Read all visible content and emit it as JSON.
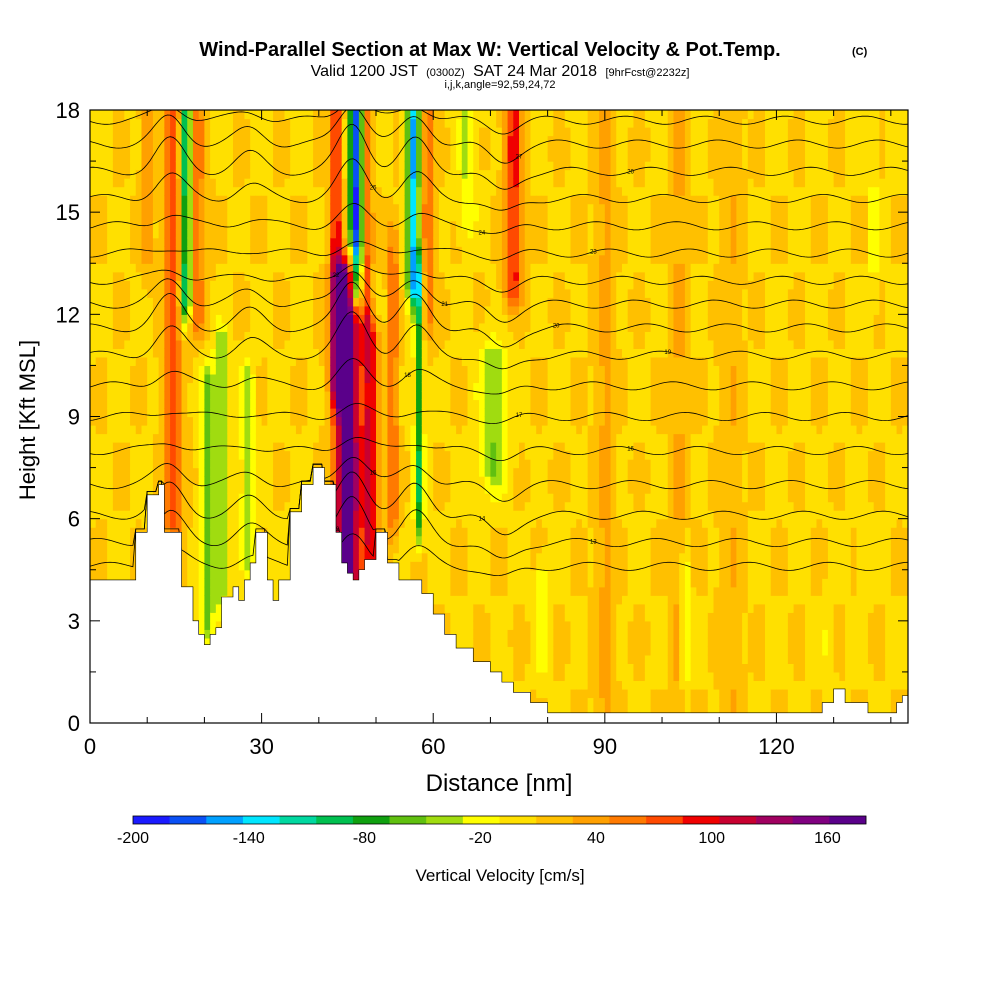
{
  "chart_data": {
    "type": "heatmap",
    "title_main": "Wind-Parallel Section at Max W: Vertical Velocity & Pot.Temp.",
    "title_units": "(C)",
    "subtitle_valid": "Valid 1200 JST",
    "subtitle_z": "(0300Z)",
    "subtitle_date": "SAT 24 Mar 2018",
    "subtitle_fcst": "[9hrFcst@2232z]",
    "subtitle_params": "i,j,k,angle=92,59,24,72",
    "xlabel": "Distance [nm]",
    "ylabel": "Height [Kft MSL]",
    "xlim": [
      0,
      143
    ],
    "ylim": [
      0,
      18
    ],
    "x_ticks": [
      "0",
      "30",
      "60",
      "90",
      "120"
    ],
    "y_ticks": [
      "0",
      "3",
      "6",
      "9",
      "12",
      "15",
      "18"
    ],
    "colorbar_label": "Vertical Velocity [cm/s]",
    "colorbar_ticks": [
      "-200",
      "-140",
      "-80",
      "-20",
      "40",
      "100",
      "160"
    ],
    "colorbar_colors": [
      "#1a1aff",
      "#0a50f5",
      "#00a0ff",
      "#00e6ff",
      "#00d8a0",
      "#00c050",
      "#10a010",
      "#60c010",
      "#a0dc10",
      "#ffff00",
      "#ffe000",
      "#ffc000",
      "#ffa000",
      "#ff7a00",
      "#ff4a00",
      "#f00000",
      "#c80030",
      "#a00060",
      "#800080",
      "#5a008a"
    ],
    "colorbar_min": -200,
    "colorbar_max": 180,
    "terrain": [
      [
        0,
        4.2
      ],
      [
        7,
        4.2
      ],
      [
        8,
        4.2
      ],
      [
        8,
        5.6
      ],
      [
        10,
        5.6
      ],
      [
        10,
        6.7
      ],
      [
        12,
        6.7
      ],
      [
        12,
        7.0
      ],
      [
        13,
        7.0
      ],
      [
        13,
        5.6
      ],
      [
        16,
        5.6
      ],
      [
        16,
        4.0
      ],
      [
        18,
        4.0
      ],
      [
        18,
        3.0
      ],
      [
        19,
        3.0
      ],
      [
        19,
        2.6
      ],
      [
        20,
        2.6
      ],
      [
        20,
        2.3
      ],
      [
        21,
        2.3
      ],
      [
        21,
        2.6
      ],
      [
        22,
        2.6
      ],
      [
        22,
        2.8
      ],
      [
        23,
        2.8
      ],
      [
        23,
        3.7
      ],
      [
        25,
        3.7
      ],
      [
        25,
        4.0
      ],
      [
        26,
        4.0
      ],
      [
        26,
        3.6
      ],
      [
        27,
        3.6
      ],
      [
        27,
        4.2
      ],
      [
        28,
        4.2
      ],
      [
        28,
        4.7
      ],
      [
        29,
        4.7
      ],
      [
        29,
        5.6
      ],
      [
        31,
        5.6
      ],
      [
        31,
        4.2
      ],
      [
        32,
        4.2
      ],
      [
        32,
        3.6
      ],
      [
        33,
        3.6
      ],
      [
        33,
        4.2
      ],
      [
        35,
        4.2
      ],
      [
        35,
        6.2
      ],
      [
        37,
        6.2
      ],
      [
        37,
        7.0
      ],
      [
        39,
        7.0
      ],
      [
        39,
        7.5
      ],
      [
        41,
        7.5
      ],
      [
        41,
        7.0
      ],
      [
        43,
        7.0
      ],
      [
        43,
        5.6
      ],
      [
        44,
        5.6
      ],
      [
        44,
        4.7
      ],
      [
        45,
        4.7
      ],
      [
        45,
        4.4
      ],
      [
        46,
        4.4
      ],
      [
        46,
        4.2
      ],
      [
        47,
        4.2
      ],
      [
        47,
        4.5
      ],
      [
        48,
        4.5
      ],
      [
        48,
        4.8
      ],
      [
        50,
        4.8
      ],
      [
        50,
        5.6
      ],
      [
        52,
        5.6
      ],
      [
        52,
        4.7
      ],
      [
        54,
        4.7
      ],
      [
        54,
        4.2
      ],
      [
        58,
        4.2
      ],
      [
        58,
        3.8
      ],
      [
        60,
        3.8
      ],
      [
        60,
        3.2
      ],
      [
        62,
        3.2
      ],
      [
        62,
        2.6
      ],
      [
        64,
        2.6
      ],
      [
        64,
        2.2
      ],
      [
        67,
        2.2
      ],
      [
        67,
        1.8
      ],
      [
        70,
        1.8
      ],
      [
        70,
        1.5
      ],
      [
        72,
        1.5
      ],
      [
        72,
        1.2
      ],
      [
        74,
        1.2
      ],
      [
        74,
        0.9
      ],
      [
        77,
        0.9
      ],
      [
        77,
        0.6
      ],
      [
        80,
        0.6
      ],
      [
        80,
        0.3
      ],
      [
        128,
        0.3
      ],
      [
        128,
        0.6
      ],
      [
        130,
        0.6
      ],
      [
        130,
        1.0
      ],
      [
        132,
        1.0
      ],
      [
        132,
        0.6
      ],
      [
        136,
        0.6
      ],
      [
        136,
        0.3
      ],
      [
        141,
        0.3
      ],
      [
        141,
        0.6
      ],
      [
        142,
        0.6
      ],
      [
        142,
        0.8
      ],
      [
        143,
        0.8
      ],
      [
        143,
        0
      ]
    ],
    "vv_features": [
      {
        "x": 14.5,
        "z0": 6,
        "z1": 18,
        "wx": 1.5,
        "amp": 70
      },
      {
        "x": 16.8,
        "z0": 12.5,
        "z1": 18,
        "wx": 1.0,
        "amp": -130
      },
      {
        "x": 18.5,
        "z0": 12,
        "z1": 18,
        "wx": 1.6,
        "amp": 55
      },
      {
        "x": 20.5,
        "z0": 3,
        "z1": 10,
        "wx": 1.2,
        "amp": -60
      },
      {
        "x": 23,
        "z0": 4,
        "z1": 11,
        "wx": 1.3,
        "amp": -50
      },
      {
        "x": 27.5,
        "z0": 5,
        "z1": 10,
        "wx": 1.2,
        "amp": -45
      },
      {
        "x": 10,
        "z0": 14,
        "z1": 18,
        "wx": 1.0,
        "amp": 40
      },
      {
        "x": 45,
        "z0": 4.5,
        "z1": 13,
        "wx": 2.2,
        "amp": 175
      },
      {
        "x": 49,
        "z0": 5,
        "z1": 11,
        "wx": 1.4,
        "amp": 95
      },
      {
        "x": 43,
        "z0": 10,
        "z1": 18,
        "wx": 1.0,
        "amp": 90
      },
      {
        "x": 46.5,
        "z0": 13,
        "z1": 18,
        "wx": 1.1,
        "amp": -190
      },
      {
        "x": 48.5,
        "z0": 12,
        "z1": 18,
        "wx": 0.9,
        "amp": 60
      },
      {
        "x": 53,
        "z0": 6,
        "z1": 14,
        "wx": 0.9,
        "amp": 55
      },
      {
        "x": 56.5,
        "z0": 13,
        "z1": 18,
        "wx": 1.1,
        "amp": -150
      },
      {
        "x": 57.5,
        "z0": 6,
        "z1": 13,
        "wx": 0.8,
        "amp": -90
      },
      {
        "x": 59,
        "z0": 12,
        "z1": 18,
        "wx": 1.2,
        "amp": 50
      },
      {
        "x": 70.5,
        "z0": 7.5,
        "z1": 10.5,
        "wx": 2.5,
        "amp": -55
      },
      {
        "x": 74,
        "z0": 13,
        "z1": 18,
        "wx": 1.5,
        "amp": 85
      },
      {
        "x": 66,
        "z0": 15,
        "z1": 18,
        "wx": 1.5,
        "amp": -40
      },
      {
        "x": 90,
        "z0": 0.5,
        "z1": 18,
        "wx": 1.5,
        "amp": 25
      },
      {
        "x": 112,
        "z0": 0.5,
        "z1": 18,
        "wx": 1.8,
        "amp": 20
      },
      {
        "x": 103,
        "z0": 0.5,
        "z1": 18,
        "wx": 1.2,
        "amp": 25
      },
      {
        "x": 79,
        "z0": 2,
        "z1": 4,
        "wx": 0.9,
        "amp": -40
      },
      {
        "x": 104,
        "z0": 1.5,
        "z1": 4.5,
        "wx": 0.8,
        "amp": -40
      },
      {
        "x": 137,
        "z0": 13,
        "z1": 18,
        "wx": 0.7,
        "amp": -30
      },
      {
        "x": 129,
        "z0": 1,
        "z1": 3,
        "wx": 0.7,
        "amp": -25
      },
      {
        "x": 135,
        "z0": 3,
        "z1": 6,
        "wx": 0.6,
        "amp": -25
      }
    ],
    "theta_contours": [
      {
        "z": 4.6,
        "label": "12"
      },
      {
        "z": 5.3,
        "label": "13"
      },
      {
        "z": 6.1,
        "label": "14"
      },
      {
        "z": 7.0,
        "label": "15"
      },
      {
        "z": 8.0,
        "label": "16"
      },
      {
        "z": 9.0,
        "label": "17"
      },
      {
        "z": 9.9,
        "label": "18"
      },
      {
        "z": 10.8,
        "label": "19"
      },
      {
        "z": 11.6,
        "label": "20"
      },
      {
        "z": 12.3,
        "label": "21"
      },
      {
        "z": 13.0,
        "label": "22"
      },
      {
        "z": 13.8,
        "label": "23"
      },
      {
        "z": 14.6,
        "label": "24"
      },
      {
        "z": 15.4,
        "label": "25"
      },
      {
        "z": 16.2,
        "label": "26"
      },
      {
        "z": 17.0,
        "label": "27"
      },
      {
        "z": 17.7,
        "label": "28"
      }
    ]
  }
}
